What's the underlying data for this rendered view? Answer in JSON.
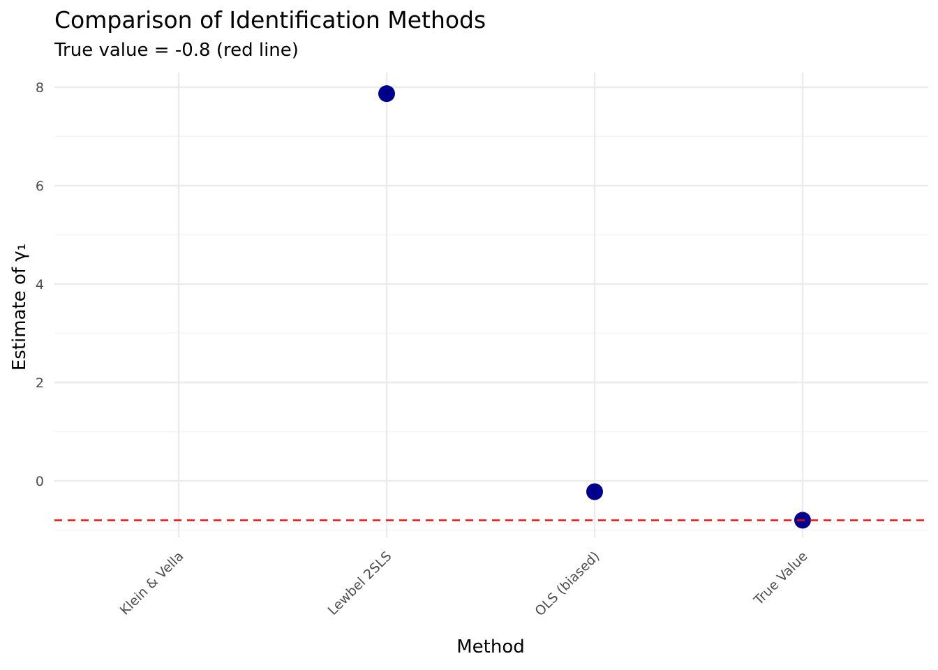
{
  "chart_data": {
    "type": "scatter",
    "title": "Comparison of Identification Methods",
    "subtitle": "True value = -0.8 (red line)",
    "xlabel": "Method",
    "ylabel": "Estimate of γ₁",
    "categories": [
      "Klein & Vella",
      "Lewbel 2SLS",
      "OLS (biased)",
      "True Value"
    ],
    "values": [
      null,
      7.87,
      -0.22,
      -0.8
    ],
    "ylim": [
      -1.0,
      8.3
    ],
    "yticks": [
      0,
      2,
      4,
      6,
      8
    ],
    "reference_line": {
      "y": -0.8,
      "color": "#ff0000",
      "style": "dashed"
    },
    "point_color": "#00008b",
    "grid": true
  }
}
